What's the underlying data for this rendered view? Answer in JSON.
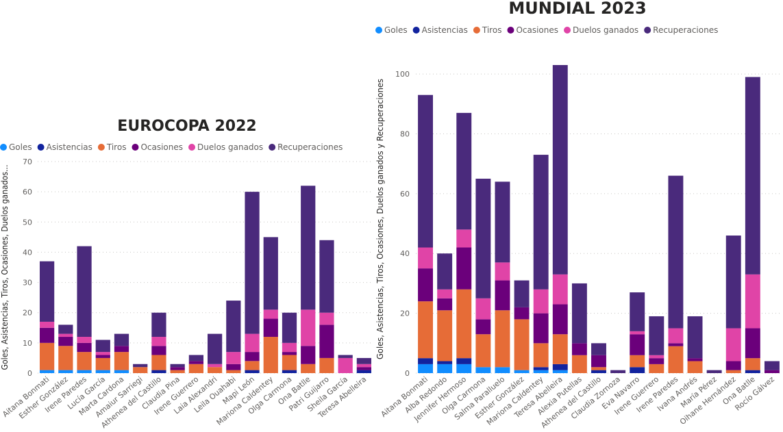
{
  "colors": {
    "Goles": "#118dff",
    "Asistencias": "#12239e",
    "Tiros": "#e66c37",
    "Ocasiones": "#6b007b",
    "Duelos ganados": "#e044a7",
    "Recuperaciones": "#4a2a7c"
  },
  "chart_data": [
    {
      "type": "bar",
      "stacked": true,
      "title": "EUROCOPA 2022",
      "ylabel": "Goles, Asistencias, Tiros, Ocasiones, Duelos ganados...",
      "xlabel": "",
      "ylim": [
        0,
        70
      ],
      "yticks": [
        0,
        10,
        20,
        30,
        40,
        50,
        60,
        70
      ],
      "grid": true,
      "legend": "top-left",
      "categories": [
        "Aitana Bonmati",
        "Esther González",
        "Irene Paredes",
        "Lucía García",
        "Marta Cardona",
        "Amaiur Sarriegi",
        "Athenea del Castillo",
        "Claudia Pina",
        "Irene Guerrero",
        "Laia Alexandri",
        "Leila Ouahabi",
        "Mapi León",
        "Mariona Caldentey",
        "Olga Carmona",
        "Ona Batlle",
        "Patri Guijarro",
        "Sheila García",
        "Teresa Abelleira"
      ],
      "series": [
        {
          "name": "Goles",
          "values": [
            1,
            1,
            1,
            1,
            1,
            0,
            0,
            0,
            0,
            0,
            0,
            0,
            0,
            0,
            0,
            0,
            0,
            0
          ]
        },
        {
          "name": "Asistencias",
          "values": [
            0,
            0,
            0,
            0,
            0,
            0,
            1,
            0,
            0,
            0,
            0,
            1,
            0,
            1,
            0,
            0,
            0,
            1
          ]
        },
        {
          "name": "Tiros",
          "values": [
            9,
            8,
            6,
            4,
            6,
            2,
            5,
            1,
            3,
            2,
            1,
            3,
            12,
            5,
            3,
            5,
            0,
            0
          ]
        },
        {
          "name": "Ocasiones",
          "values": [
            5,
            3,
            3,
            1,
            2,
            0,
            3,
            1,
            1,
            0,
            2,
            3,
            6,
            1,
            6,
            11,
            0,
            1
          ]
        },
        {
          "name": "Duelos ganados",
          "values": [
            2,
            1,
            2,
            1,
            0,
            0,
            3,
            0,
            0,
            1,
            4,
            6,
            3,
            3,
            12,
            4,
            5,
            1
          ]
        },
        {
          "name": "Recuperaciones",
          "values": [
            20,
            3,
            30,
            4,
            4,
            1,
            8,
            1,
            2,
            10,
            17,
            47,
            24,
            10,
            41,
            24,
            1,
            2
          ]
        }
      ]
    },
    {
      "type": "bar",
      "stacked": true,
      "title": "MUNDIAL 2023",
      "ylabel": "Goles, Asistencias, Tiros, Ocasiones, Duelos ganados y Recuperaciones",
      "xlabel": "",
      "ylim": [
        0,
        103
      ],
      "yticks": [
        0,
        20,
        40,
        60,
        80,
        100
      ],
      "grid": true,
      "legend": "top-left",
      "categories": [
        "Aitana Bonmati",
        "Alba Redondo",
        "Jennifer Hermoso",
        "Olga Carmona",
        "Salma Paralluelo",
        "Esther González",
        "Mariona Caldentey",
        "Teresa Abelleira",
        "Alexia Putellas",
        "Athenea del Castillo",
        "Claudia Zornoza",
        "Eva Navarro",
        "Irene Guerrero",
        "Irene Paredes",
        "Ivana Andrés",
        "María Pérez",
        "Oihane Hernández",
        "Ona Batlle",
        "Rocío Gálvez"
      ],
      "series": [
        {
          "name": "Goles",
          "values": [
            3,
            3,
            3,
            2,
            2,
            1,
            1,
            1,
            0,
            0,
            0,
            0,
            0,
            0,
            0,
            0,
            0,
            0,
            0
          ]
        },
        {
          "name": "Asistencias",
          "values": [
            2,
            1,
            2,
            0,
            0,
            0,
            1,
            2,
            0,
            1,
            0,
            2,
            0,
            0,
            0,
            0,
            0,
            1,
            0
          ]
        },
        {
          "name": "Tiros",
          "values": [
            19,
            17,
            23,
            11,
            19,
            17,
            8,
            10,
            6,
            1,
            0,
            4,
            3,
            9,
            4,
            0,
            1,
            4,
            0
          ]
        },
        {
          "name": "Ocasiones",
          "values": [
            11,
            4,
            14,
            5,
            10,
            4,
            10,
            10,
            4,
            4,
            0,
            7,
            2,
            1,
            1,
            0,
            3,
            10,
            1
          ]
        },
        {
          "name": "Duelos ganados",
          "values": [
            7,
            3,
            6,
            7,
            6,
            0,
            8,
            10,
            0,
            0,
            0,
            1,
            1,
            5,
            0,
            0,
            11,
            18,
            0
          ]
        },
        {
          "name": "Recuperaciones",
          "values": [
            51,
            12,
            39,
            40,
            27,
            9,
            45,
            70,
            20,
            4,
            1,
            13,
            13,
            51,
            14,
            1,
            31,
            66,
            3
          ]
        }
      ]
    }
  ]
}
